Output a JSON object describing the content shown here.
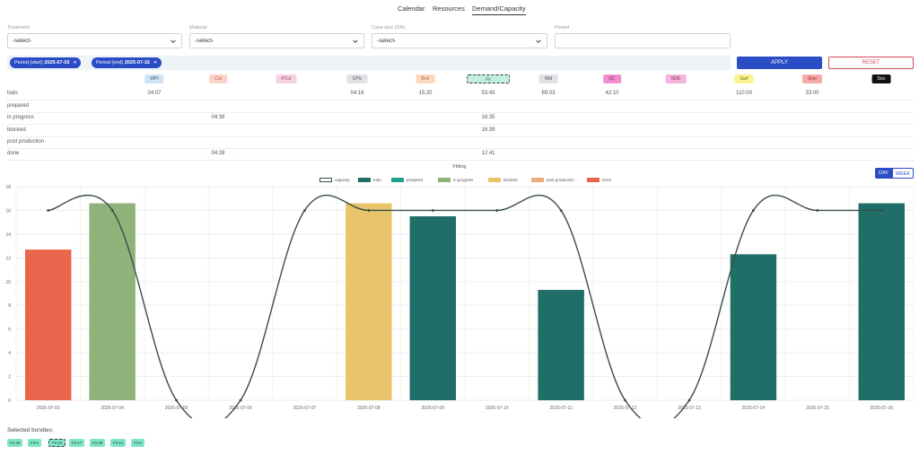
{
  "nav": {
    "items": [
      {
        "label": "Calendar"
      },
      {
        "label": "Resources"
      },
      {
        "label": "Demand/Capacity"
      }
    ]
  },
  "filters": {
    "treatment": {
      "label": "Treatment",
      "value": "-select-"
    },
    "material": {
      "label": "Material",
      "value": "-select-"
    },
    "case_size": {
      "label": "Case size (DN)",
      "value": "-select-"
    },
    "period": {
      "label": "Period",
      "value": ""
    }
  },
  "active_filters": [
    {
      "prefix": "Period (start)",
      "value": "2025-07-03",
      "remove": "×"
    },
    {
      "prefix": "Period (end)",
      "value": "2025-07-16",
      "remove": "×"
    }
  ],
  "actions": {
    "apply": "APPLY",
    "reset": "RESET"
  },
  "stations": [
    {
      "code": "WPI",
      "bg": "#cfe3f4",
      "fg": "#3d5f86"
    },
    {
      "code": "Cut",
      "bg": "#fbd3c9",
      "fg": "#b8523a"
    },
    {
      "code": "PCut",
      "bg": "#f6d1e2",
      "fg": "#9a4a72"
    },
    {
      "code": "CPIc",
      "bg": "#dfe2e6",
      "fg": "#555"
    },
    {
      "code": "Bnd",
      "bg": "#fbd9c0",
      "fg": "#b86a2f"
    },
    {
      "code": "Fit",
      "bg": "#c3f0dd",
      "fg": "#2e7a5c"
    },
    {
      "code": "Wld",
      "bg": "#dfe2e6",
      "fg": "#555"
    },
    {
      "code": "QC",
      "bg": "#f28fd0",
      "fg": "#7a1e5a"
    },
    {
      "code": "NDE",
      "bg": "#f4b4dd",
      "fg": "#8a2a66"
    },
    {
      "code": "Surf",
      "bg": "#f8f48f",
      "fg": "#6a6a1a"
    },
    {
      "code": "Ship",
      "bg": "#f7a9a9",
      "fg": "#a32c2c"
    },
    {
      "code": "Doc",
      "bg": "#111111",
      "fg": "#ffffff"
    }
  ],
  "status_rows": [
    {
      "label": "todo",
      "cells": {
        "WPI": "04:07",
        "CPIc": "04:18",
        "Bnd": "15:20",
        "Fit": "53:43",
        "Wld": "69:03",
        "QC": "42:10",
        "Surf": "110:00",
        "Ship": "33:00"
      }
    },
    {
      "label": "prepared",
      "cells": {}
    },
    {
      "label": "in progress",
      "cells": {
        "Cut": "04:38",
        "Fit": "16:35"
      }
    },
    {
      "label": "blocked",
      "cells": {
        "Fit": "16:39"
      }
    },
    {
      "label": "post production",
      "cells": {}
    },
    {
      "label": "done",
      "cells": {
        "Cut": "04:28",
        "Fit": "12:41"
      }
    }
  ],
  "view_toggle": {
    "day": "DAY",
    "week": "WEEK"
  },
  "chart_data": {
    "type": "bar",
    "title": "Fitting",
    "categories": [
      "2025-07-03",
      "2025-07-04",
      "2025-07-05",
      "2025-07-06",
      "2025-07-07",
      "2025-07-08",
      "2025-07-09",
      "2025-07-10",
      "2025-07-11",
      "2025-07-12",
      "2025-07-13",
      "2025-07-14",
      "2025-07-15",
      "2025-07-16"
    ],
    "ylim": [
      0,
      18
    ],
    "yticks": [
      "0",
      "2",
      "4",
      "6",
      "8",
      "10",
      "12",
      "14",
      "16",
      "18"
    ],
    "legend": [
      {
        "name": "capacity",
        "color": "#ffffff",
        "border": "#3a4d47"
      },
      {
        "name": "todo",
        "color": "#1f6e68"
      },
      {
        "name": "prepared",
        "color": "#23a08c"
      },
      {
        "name": "in progress",
        "color": "#8db37a"
      },
      {
        "name": "blocked",
        "color": "#e8c46a"
      },
      {
        "name": "post production",
        "color": "#ecae78"
      },
      {
        "name": "done",
        "color": "#e8664b"
      }
    ],
    "bars": [
      {
        "date": "2025-07-03",
        "status": "done",
        "value": 12.7
      },
      {
        "date": "2025-07-04",
        "status": "in progress",
        "value": 16.6
      },
      {
        "date": "2025-07-08",
        "status": "blocked",
        "value": 16.6
      },
      {
        "date": "2025-07-09",
        "status": "todo",
        "value": 15.5
      },
      {
        "date": "2025-07-11",
        "status": "todo",
        "value": 9.3
      },
      {
        "date": "2025-07-14",
        "status": "todo",
        "value": 12.3
      },
      {
        "date": "2025-07-16",
        "status": "todo",
        "value": 16.6
      }
    ],
    "capacity": [
      16,
      16,
      0,
      0,
      16,
      16,
      16,
      16,
      16,
      0,
      0,
      16,
      16,
      16
    ],
    "grid": true,
    "legend_position": "top"
  },
  "bundles": {
    "title": "Selected bundles:",
    "items": [
      {
        "label": "Fit 29",
        "selected": false
      },
      {
        "label": "Fit 5",
        "selected": false
      },
      {
        "label": "Fit 22",
        "selected": true
      },
      {
        "label": "Fit 27",
        "selected": false
      },
      {
        "label": "Fit 28",
        "selected": false
      },
      {
        "label": "Fit 14",
        "selected": false
      },
      {
        "label": "Fit 8",
        "selected": false
      }
    ]
  }
}
